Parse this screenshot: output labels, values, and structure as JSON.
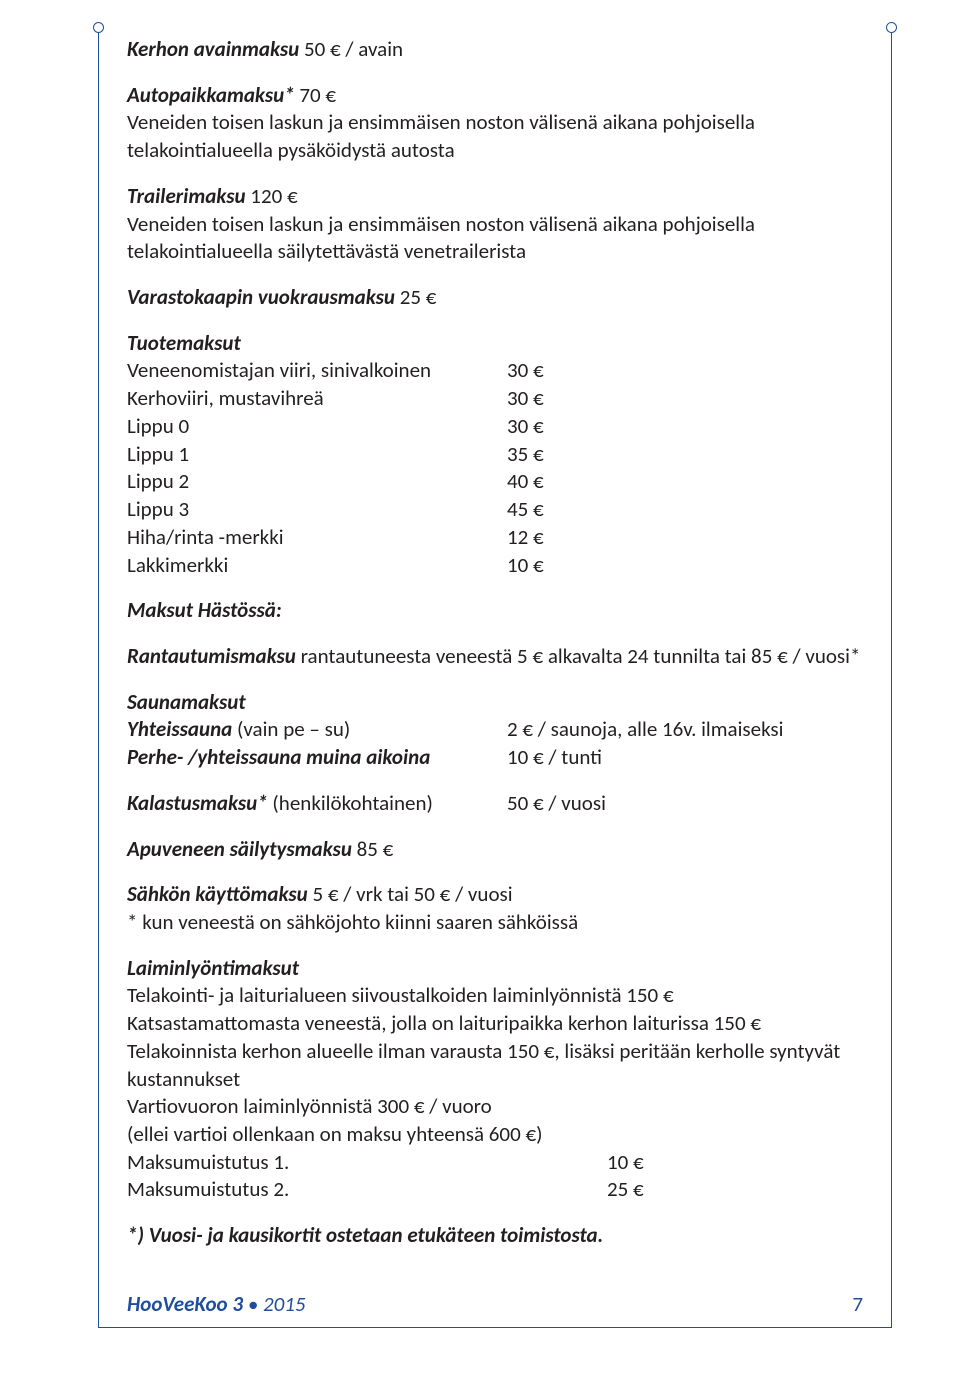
{
  "fees": {
    "key_fee_label": "Kerhon avainmaksu",
    "key_fee_value": "50 € / avain",
    "parking_label": "Autopaikkamaksu*",
    "parking_value": "70 €",
    "parking_desc": "Veneiden toisen laskun ja ensimmäisen noston välisenä aikana pohjoisella telakointialueella pysäköidystä autosta",
    "trailer_label": "Trailerimaksu",
    "trailer_value": "120 €",
    "trailer_desc": "Veneiden toisen laskun ja ensimmäisen noston välisenä aikana pohjoisella telakointialueella säilytettävästä venetrailerista",
    "storage_label": "Varastokaapin vuokrausmaksu",
    "storage_value": "25 €",
    "products_title": "Tuotemaksut",
    "products": [
      {
        "label": "Veneenomistajan viiri, sinivalkoinen",
        "price": "30 €"
      },
      {
        "label": "Kerhoviiri, mustavihreä",
        "price": "30 €"
      },
      {
        "label": "Lippu 0",
        "price": "30 €"
      },
      {
        "label": "Lippu 1",
        "price": "35 €"
      },
      {
        "label": "Lippu 2",
        "price": "40 €"
      },
      {
        "label": "Lippu 3",
        "price": "45 €"
      },
      {
        "label": "Hiha/rinta -merkki",
        "price": "12 €"
      },
      {
        "label": "Lakkimerkki",
        "price": "10 €"
      }
    ],
    "hasto_title": "Maksut Hästössä:",
    "landing_label": "Rantautumismaksu",
    "landing_desc": " rantautuneesta veneestä 5 € alkavalta 24 tunnilta tai 85 € / vuosi*",
    "sauna_title": "Saunamaksut",
    "sauna_shared_label": "Yhteissauna",
    "sauna_shared_note": " (vain pe – su)",
    "sauna_shared_price": "2 € / saunoja, alle 16v. ilmaiseksi",
    "sauna_family_label": "Perhe- /yhteissauna muina aikoina",
    "sauna_family_price": "10 € / tunti",
    "fishing_label": "Kalastusmaksu*",
    "fishing_note": " (henkilökohtainen)",
    "fishing_price": "50 € / vuosi",
    "aux_boat_label": "Apuveneen säilytysmaksu",
    "aux_boat_value": "85 €",
    "power_label": "Sähkön käyttömaksu",
    "power_value": " 5 € / vrk tai 50 € / vuosi",
    "power_note": "* kun veneestä on sähköjohto kiinni saaren sähköissä",
    "neglect_title": "Laiminlyöntimaksut",
    "neglect_lines": [
      "Telakointi- ja laiturialueen siivoustalkoiden laiminlyönnistä 150 €",
      "Katsastamattomasta veneestä, jolla on laituripaikka kerhon laiturissa 150 €",
      "Telakoinnista kerhon alueelle ilman varausta 150 €, lisäksi peritään kerholle syntyvät kustannukset",
      "Vartiovuoron laiminlyönnistä 300 € / vuoro",
      "(ellei vartioi ollenkaan on maksu yhteensä 600 €)"
    ],
    "reminder1_label": "Maksumuistutus 1.",
    "reminder1_price": "10 €",
    "reminder2_label": "Maksumuistutus 2.",
    "reminder2_price": "25 €",
    "footnote": "*) Vuosi- ja kausikortit ostetaan etukäteen toimistosta."
  },
  "footer": {
    "title": "HooVeeKoo 3",
    "sep": " • ",
    "year": "2015",
    "page": "7"
  },
  "colors": {
    "border": "#1f4e9b",
    "text": "#231f20"
  }
}
